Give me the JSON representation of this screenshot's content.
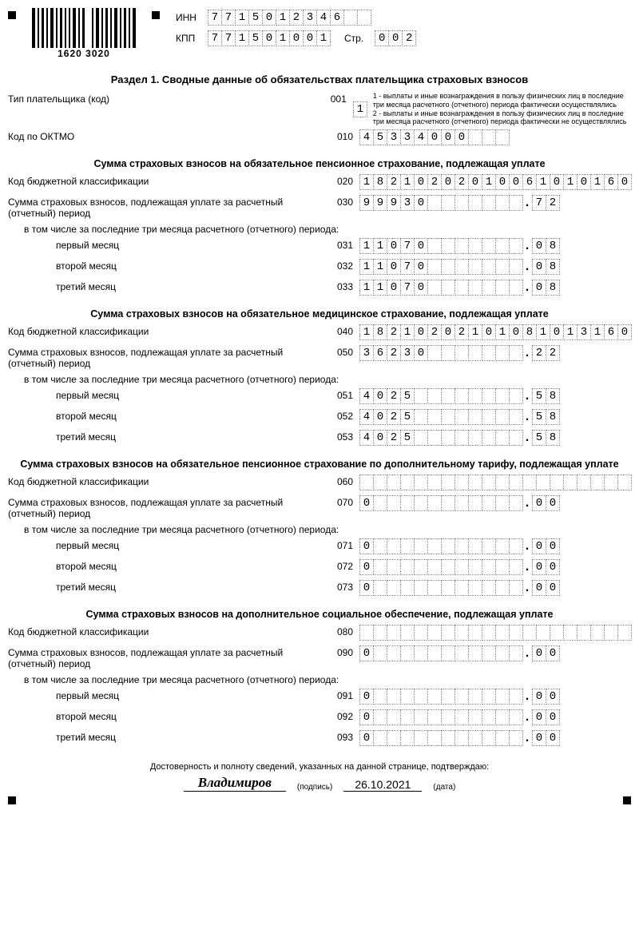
{
  "barcode": {
    "label": "1620 3020"
  },
  "header": {
    "inn_label": "ИНН",
    "inn": [
      "7",
      "7",
      "1",
      "5",
      "0",
      "1",
      "2",
      "3",
      "4",
      "6",
      "",
      ""
    ],
    "kpp_label": "КПП",
    "kpp": [
      "7",
      "7",
      "1",
      "5",
      "0",
      "1",
      "0",
      "0",
      "1"
    ],
    "page_label": "Стр.",
    "page": [
      "0",
      "0",
      "2"
    ]
  },
  "section_title": "Раздел 1. Сводные данные об обязательствах плательщика страховых взносов",
  "payer_type": {
    "label": "Тип плательщика (код)",
    "code": "001",
    "value": [
      "1"
    ],
    "note1": "1 - выплаты и иные вознаграждения в пользу физических лиц в последние три месяца расчетного (отчетного) периода фактически осуществлялись",
    "note2": "2 - выплаты и иные вознаграждения в пользу физических лиц в последние три месяца расчетного (отчетного) периода фактически не осуществлялись"
  },
  "oktmo": {
    "label": "Код по ОКТМО",
    "code": "010",
    "value": [
      "4",
      "5",
      "3",
      "3",
      "4",
      "0",
      "0",
      "0",
      "",
      "",
      ""
    ]
  },
  "blocks": [
    {
      "title": "Сумма страховых взносов на обязательное пенсионное страхование, подлежащая уплате",
      "kbk": {
        "label": "Код бюджетной классификации",
        "code": "020",
        "value": [
          "1",
          "8",
          "2",
          "1",
          "0",
          "2",
          "0",
          "2",
          "0",
          "1",
          "0",
          "0",
          "6",
          "1",
          "0",
          "1",
          "0",
          "1",
          "6",
          "0"
        ]
      },
      "sum": {
        "label": "Сумма страховых взносов, подлежащая уплате за расчетный (отчетный) период",
        "code": "030",
        "int": [
          "9",
          "9",
          "9",
          "3",
          "0",
          "",
          "",
          "",
          "",
          "",
          "",
          ""
        ],
        "dec": [
          "7",
          "2"
        ]
      },
      "subnote": "в том числе за последние три месяца расчетного (отчетного) периода:",
      "months": [
        {
          "label": "первый месяц",
          "code": "031",
          "int": [
            "1",
            "1",
            "0",
            "7",
            "0",
            "",
            "",
            "",
            "",
            "",
            "",
            ""
          ],
          "dec": [
            "0",
            "8"
          ]
        },
        {
          "label": "второй месяц",
          "code": "032",
          "int": [
            "1",
            "1",
            "0",
            "7",
            "0",
            "",
            "",
            "",
            "",
            "",
            "",
            ""
          ],
          "dec": [
            "0",
            "8"
          ]
        },
        {
          "label": "третий месяц",
          "code": "033",
          "int": [
            "1",
            "1",
            "0",
            "7",
            "0",
            "",
            "",
            "",
            "",
            "",
            "",
            ""
          ],
          "dec": [
            "0",
            "8"
          ]
        }
      ]
    },
    {
      "title": "Сумма страховых взносов на обязательное медицинское страхование, подлежащая уплате",
      "kbk": {
        "label": "Код бюджетной классификации",
        "code": "040",
        "value": [
          "1",
          "8",
          "2",
          "1",
          "0",
          "2",
          "0",
          "2",
          "1",
          "0",
          "1",
          "0",
          "8",
          "1",
          "0",
          "1",
          "3",
          "1",
          "6",
          "0"
        ]
      },
      "sum": {
        "label": "Сумма страховых взносов, подлежащая уплате за расчетный (отчетный) период",
        "code": "050",
        "int": [
          "3",
          "6",
          "2",
          "3",
          "0",
          "",
          "",
          "",
          "",
          "",
          "",
          ""
        ],
        "dec": [
          "2",
          "2"
        ]
      },
      "subnote": "в том числе за последние три месяца расчетного (отчетного) периода:",
      "months": [
        {
          "label": "первый месяц",
          "code": "051",
          "int": [
            "4",
            "0",
            "2",
            "5",
            "",
            "",
            "",
            "",
            "",
            "",
            "",
            ""
          ],
          "dec": [
            "5",
            "8"
          ]
        },
        {
          "label": "второй месяц",
          "code": "052",
          "int": [
            "4",
            "0",
            "2",
            "5",
            "",
            "",
            "",
            "",
            "",
            "",
            "",
            ""
          ],
          "dec": [
            "5",
            "8"
          ]
        },
        {
          "label": "третий месяц",
          "code": "053",
          "int": [
            "4",
            "0",
            "2",
            "5",
            "",
            "",
            "",
            "",
            "",
            "",
            "",
            ""
          ],
          "dec": [
            "5",
            "8"
          ]
        }
      ]
    },
    {
      "title": "Сумма страховых взносов на обязательное пенсионное страхование по дополнительному тарифу, подлежащая уплате",
      "kbk": {
        "label": "Код бюджетной классификации",
        "code": "060",
        "value": [
          "",
          "",
          "",
          "",
          "",
          "",
          "",
          "",
          "",
          "",
          "",
          "",
          "",
          "",
          "",
          "",
          "",
          "",
          "",
          ""
        ]
      },
      "sum": {
        "label": "Сумма страховых взносов, подлежащая уплате за расчетный (отчетный) период",
        "code": "070",
        "int": [
          "0",
          "",
          "",
          "",
          "",
          "",
          "",
          "",
          "",
          "",
          "",
          ""
        ],
        "dec": [
          "0",
          "0"
        ]
      },
      "subnote": "в том числе за последние три месяца расчетного (отчетного) периода:",
      "months": [
        {
          "label": "первый месяц",
          "code": "071",
          "int": [
            "0",
            "",
            "",
            "",
            "",
            "",
            "",
            "",
            "",
            "",
            "",
            ""
          ],
          "dec": [
            "0",
            "0"
          ]
        },
        {
          "label": "второй месяц",
          "code": "072",
          "int": [
            "0",
            "",
            "",
            "",
            "",
            "",
            "",
            "",
            "",
            "",
            "",
            ""
          ],
          "dec": [
            "0",
            "0"
          ]
        },
        {
          "label": "третий месяц",
          "code": "073",
          "int": [
            "0",
            "",
            "",
            "",
            "",
            "",
            "",
            "",
            "",
            "",
            "",
            ""
          ],
          "dec": [
            "0",
            "0"
          ]
        }
      ]
    },
    {
      "title": "Сумма страховых взносов на дополнительное социальное обеспечение, подлежащая уплате",
      "kbk": {
        "label": "Код бюджетной классификации",
        "code": "080",
        "value": [
          "",
          "",
          "",
          "",
          "",
          "",
          "",
          "",
          "",
          "",
          "",
          "",
          "",
          "",
          "",
          "",
          "",
          "",
          "",
          ""
        ]
      },
      "sum": {
        "label": "Сумма страховых взносов, подлежащая уплате за расчетный (отчетный) период",
        "code": "090",
        "int": [
          "0",
          "",
          "",
          "",
          "",
          "",
          "",
          "",
          "",
          "",
          "",
          ""
        ],
        "dec": [
          "0",
          "0"
        ]
      },
      "subnote": "в том числе за последние три месяца расчетного (отчетного) периода:",
      "months": [
        {
          "label": "первый месяц",
          "code": "091",
          "int": [
            "0",
            "",
            "",
            "",
            "",
            "",
            "",
            "",
            "",
            "",
            "",
            ""
          ],
          "dec": [
            "0",
            "0"
          ]
        },
        {
          "label": "второй месяц",
          "code": "092",
          "int": [
            "0",
            "",
            "",
            "",
            "",
            "",
            "",
            "",
            "",
            "",
            "",
            ""
          ],
          "dec": [
            "0",
            "0"
          ]
        },
        {
          "label": "третий месяц",
          "code": "093",
          "int": [
            "0",
            "",
            "",
            "",
            "",
            "",
            "",
            "",
            "",
            "",
            "",
            ""
          ],
          "dec": [
            "0",
            "0"
          ]
        }
      ]
    }
  ],
  "footer": {
    "confirm": "Достоверность и полноту сведений, указанных на данной странице, подтверждаю:",
    "signature": "Владимиров",
    "sig_label": "(подпись)",
    "date": "26.10.2021",
    "date_label": "(дата)"
  }
}
